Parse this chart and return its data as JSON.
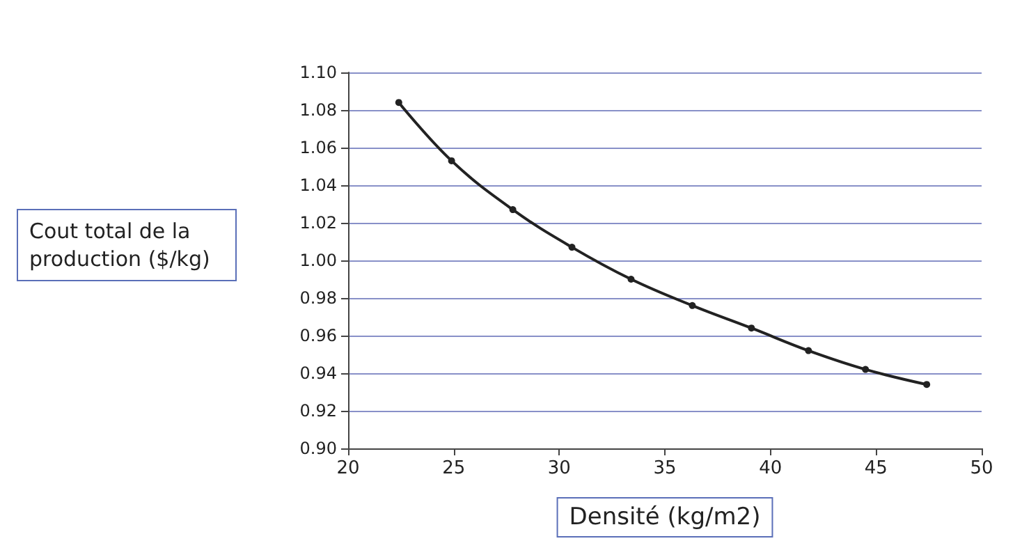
{
  "chart_data": {
    "type": "line",
    "xlabel": "Densité (kg/m2)",
    "ylabel": "Cout total de la production ($/kg)",
    "x": [
      22.4,
      24.9,
      27.8,
      30.6,
      33.4,
      36.3,
      39.1,
      41.8,
      44.5,
      47.4
    ],
    "series": [
      {
        "color": "#222222",
        "values": [
          1.084,
          1.053,
          1.027,
          1.007,
          0.99,
          0.976,
          0.964,
          0.952,
          0.942,
          0.934
        ]
      }
    ],
    "xlim": [
      20,
      50
    ],
    "xticks": [
      20,
      25,
      30,
      35,
      40,
      45,
      50
    ],
    "ylim": [
      0.9,
      1.1
    ],
    "yticks": [
      {
        "value": 0.9,
        "label": "0.90"
      },
      {
        "value": 0.92,
        "label": "0.92"
      },
      {
        "value": 0.94,
        "label": "0.94"
      },
      {
        "value": 0.96,
        "label": "0.96"
      },
      {
        "value": 0.98,
        "label": "0.98"
      },
      {
        "value": 1.0,
        "label": "1.00"
      },
      {
        "value": 1.02,
        "label": "1.02"
      },
      {
        "value": 1.04,
        "label": "1.04"
      },
      {
        "value": 1.06,
        "label": "1.06"
      },
      {
        "value": 1.08,
        "label": "1.08"
      },
      {
        "value": 1.1,
        "label": "1.10"
      }
    ],
    "grid": "y",
    "marker": "circle",
    "line_style": "solid"
  }
}
